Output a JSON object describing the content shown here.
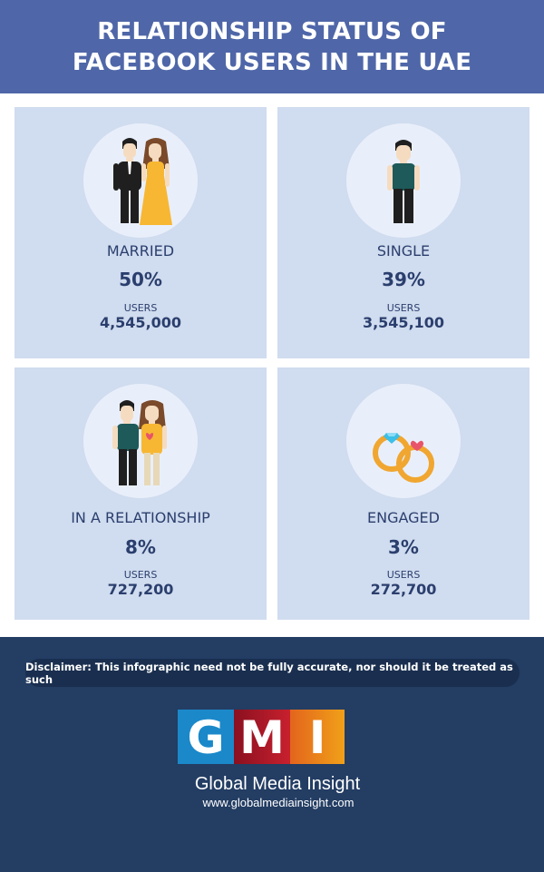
{
  "header": {
    "title": "RELATIONSHIP STATUS OF FACEBOOK USERS IN THE UAE",
    "background": "#4f67a8"
  },
  "cards": [
    {
      "status": "MARRIED",
      "percent": "50%",
      "users_label": "USERS",
      "users": "4,545,000",
      "icon": "married-couple-icon"
    },
    {
      "status": "SINGLE",
      "percent": "39%",
      "users_label": "USERS",
      "users": "3,545,100",
      "icon": "single-man-icon"
    },
    {
      "status": "IN A RELATIONSHIP",
      "percent": "8%",
      "users_label": "USERS",
      "users": "727,200",
      "icon": "couple-icon"
    },
    {
      "status": "ENGAGED",
      "percent": "3%",
      "users_label": "USERS",
      "users": "272,700",
      "icon": "engagement-rings-icon"
    }
  ],
  "footer": {
    "disclaimer": "Disclaimer: This infographic need not be fully accurate, nor should it be treated as such",
    "logo_letters": [
      "G",
      "M",
      "I"
    ],
    "brand_name": "Global Media Insight",
    "url": "www.globalmediainsight.com",
    "background": "#233d63"
  },
  "colors": {
    "card_bg": "#d0dcef",
    "circle_bg": "#e9effa",
    "text_dark": "#2b3f6e",
    "dress_yellow": "#f7b733",
    "shirt_teal": "#1e5a5a"
  }
}
